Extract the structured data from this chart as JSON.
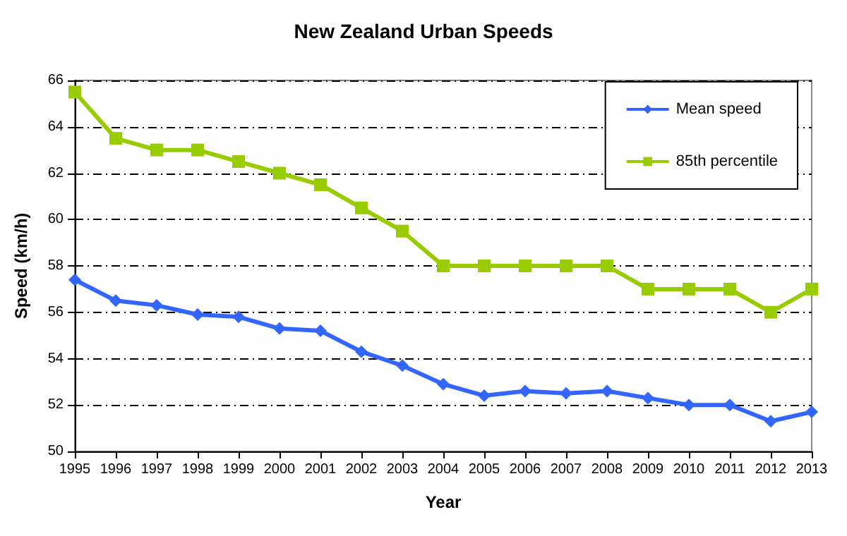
{
  "chart_data": {
    "type": "line",
    "title": "New Zealand Urban Speeds",
    "xlabel": "Year",
    "ylabel": "Speed (km/h)",
    "categories": [
      "1995",
      "1996",
      "1997",
      "1998",
      "1999",
      "2000",
      "2001",
      "2002",
      "2003",
      "2004",
      "2005",
      "2006",
      "2007",
      "2008",
      "2009",
      "2010",
      "2011",
      "2012",
      "2013"
    ],
    "series": [
      {
        "name": "Mean speed",
        "color": "#3366ff",
        "marker": "diamond",
        "values": [
          57.4,
          56.5,
          56.3,
          55.9,
          55.8,
          55.3,
          55.2,
          54.3,
          53.7,
          52.9,
          52.4,
          52.6,
          52.5,
          52.6,
          52.3,
          52.0,
          52.0,
          51.3,
          51.7
        ]
      },
      {
        "name": "85th percentile",
        "color": "#99cc00",
        "marker": "square",
        "values": [
          65.5,
          63.5,
          63,
          63,
          62.5,
          62,
          61.5,
          60.5,
          59.5,
          58,
          58,
          58,
          58,
          58,
          57,
          57,
          57,
          56,
          57
        ]
      }
    ],
    "ylim": [
      50,
      66
    ],
    "yticks": [
      50,
      52,
      54,
      56,
      58,
      60,
      62,
      64,
      66
    ],
    "grid": "y",
    "legend": "top right",
    "line_style": "solid"
  }
}
